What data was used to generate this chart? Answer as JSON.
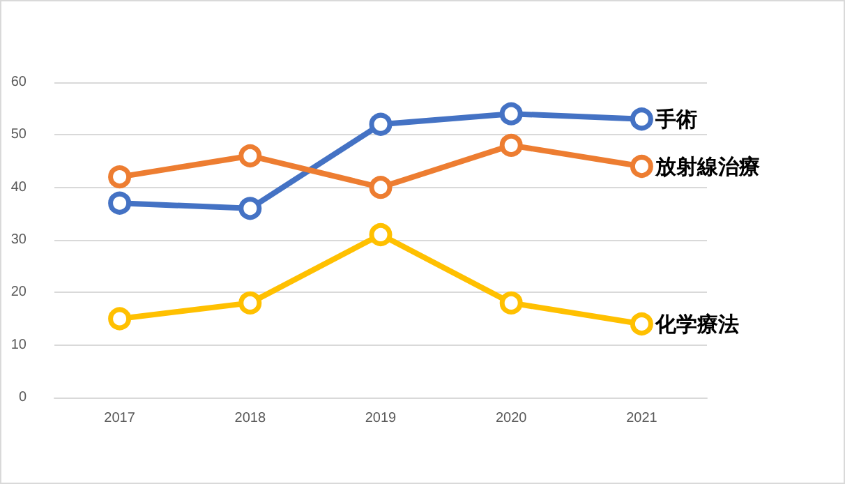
{
  "chart_data": {
    "type": "line",
    "categories": [
      "2017",
      "2018",
      "2019",
      "2020",
      "2021"
    ],
    "series": [
      {
        "name": "手術",
        "color": "#4472c4",
        "values": [
          37,
          36,
          52,
          54,
          53
        ]
      },
      {
        "name": "放射線治療",
        "color": "#ed7d31",
        "values": [
          42,
          46,
          40,
          48,
          44
        ]
      },
      {
        "name": "化学療法",
        "color": "#ffc000",
        "values": [
          15,
          18,
          31,
          18,
          14
        ]
      }
    ],
    "ylim": [
      0,
      60
    ],
    "yticks": [
      0,
      10,
      20,
      30,
      40,
      50,
      60
    ],
    "grid": "y",
    "legend": false,
    "marker": "circle",
    "line_style": "solid"
  }
}
